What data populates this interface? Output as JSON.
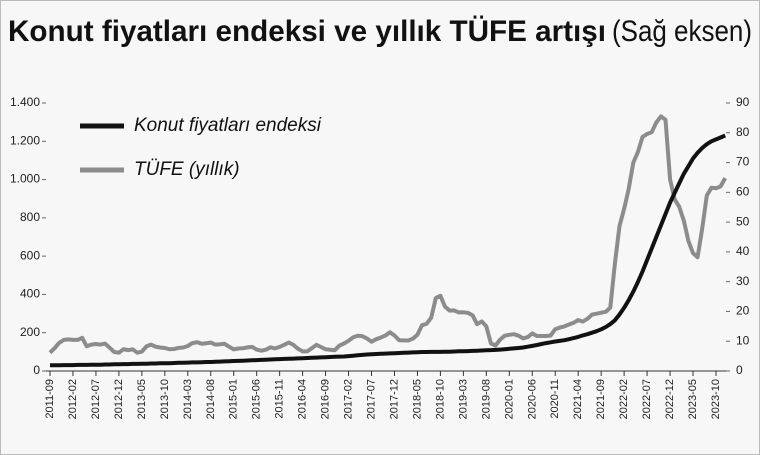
{
  "chart_data": {
    "type": "line",
    "title": "Konut fiyatları endeksi ve yıllık TÜFE artışı",
    "subtitle": "(Sağ eksen)",
    "categories": [
      "2011-09",
      null,
      null,
      null,
      null,
      "2012-02",
      null,
      null,
      null,
      null,
      "2012-07",
      null,
      null,
      null,
      null,
      "2012-12",
      null,
      null,
      null,
      null,
      "2013-05",
      null,
      null,
      null,
      null,
      "2013-10",
      null,
      null,
      null,
      null,
      "2014-03",
      null,
      null,
      null,
      null,
      "2014-08",
      null,
      null,
      null,
      null,
      "2015-01",
      null,
      null,
      null,
      null,
      "2015-06",
      null,
      null,
      null,
      null,
      "2015-11",
      null,
      null,
      null,
      null,
      "2016-04",
      null,
      null,
      null,
      null,
      "2016-09",
      null,
      null,
      null,
      null,
      "2017-02",
      null,
      null,
      null,
      null,
      "2017-07",
      null,
      null,
      null,
      null,
      "2017-12",
      null,
      null,
      null,
      null,
      "2018-05",
      null,
      null,
      null,
      null,
      "2018-10",
      null,
      null,
      null,
      null,
      "2019-03",
      null,
      null,
      null,
      null,
      "2019-08",
      null,
      null,
      null,
      null,
      "2020-01",
      null,
      null,
      null,
      null,
      "2020-06",
      null,
      null,
      null,
      null,
      "2020-11",
      null,
      null,
      null,
      null,
      "2021-04",
      null,
      null,
      null,
      null,
      "2021-09",
      null,
      null,
      null,
      null,
      "2022-02",
      null,
      null,
      null,
      null,
      "2022-07",
      null,
      null,
      null,
      null,
      "2022-12",
      null,
      null,
      null,
      null,
      "2023-05",
      null,
      null,
      null,
      null,
      "2023-10",
      null,
      null
    ],
    "series": [
      {
        "name": "Konut fiyatları endeksi",
        "color": "#111111",
        "values": [
          30,
          30,
          30,
          31,
          31,
          31,
          32,
          32,
          32,
          33,
          33,
          33,
          34,
          34,
          35,
          35,
          36,
          36,
          37,
          37,
          38,
          38,
          39,
          39,
          40,
          41,
          41,
          42,
          43,
          43,
          44,
          45,
          45,
          46,
          47,
          47,
          48,
          49,
          50,
          51,
          52,
          53,
          54,
          55,
          56,
          57,
          58,
          59,
          60,
          61,
          62,
          63,
          64,
          65,
          66,
          67,
          68,
          69,
          70,
          71,
          72,
          73,
          74,
          75,
          76,
          78,
          80,
          82,
          84,
          86,
          88,
          89,
          90,
          91,
          92,
          93,
          94,
          95,
          96,
          97,
          98,
          99,
          99,
          100,
          100,
          100,
          101,
          101,
          102,
          103,
          103,
          104,
          105,
          106,
          107,
          108,
          109,
          110,
          112,
          114,
          116,
          118,
          120,
          123,
          127,
          131,
          136,
          141,
          146,
          150,
          154,
          157,
          161,
          166,
          172,
          178,
          186,
          192,
          200,
          208,
          218,
          230,
          245,
          265,
          295,
          330,
          370,
          415,
          465,
          520,
          580,
          640,
          700,
          760,
          820,
          880,
          930,
          980,
          1030,
          1070,
          1110,
          1140,
          1165,
          1185,
          1200,
          1210,
          1220,
          1230
        ]
      },
      {
        "name": "TÜFE (yıllık)",
        "color": "#8c8c8c",
        "axis": "y2",
        "values": [
          6.15,
          7.66,
          9.48,
          10.45,
          10.61,
          10.43,
          10.43,
          11.14,
          8.28,
          8.87,
          9.07,
          8.88,
          9.19,
          7.8,
          6.37,
          6.16,
          7.31,
          7.03,
          7.29,
          6.13,
          6.51,
          8.3,
          8.88,
          8.17,
          7.88,
          7.71,
          7.32,
          7.4,
          7.75,
          7.89,
          8.39,
          9.38,
          9.66,
          9.16,
          9.32,
          9.54,
          8.86,
          8.96,
          9.15,
          8.17,
          7.24,
          7.55,
          7.61,
          7.91,
          8.09,
          7.2,
          6.81,
          7.14,
          7.95,
          7.58,
          8.1,
          8.81,
          9.58,
          8.78,
          7.46,
          6.57,
          6.58,
          7.64,
          8.79,
          8.05,
          7.28,
          7.16,
          7,
          8.53,
          9.22,
          10.13,
          11.29,
          11.87,
          11.72,
          10.9,
          9.79,
          10.68,
          11.2,
          11.9,
          12.98,
          11.92,
          10.35,
          10.26,
          10.23,
          10.85,
          12.15,
          15.39,
          15.85,
          17.9,
          24.52,
          25.24,
          21.62,
          20.3,
          20.35,
          19.67,
          19.71,
          19.5,
          18.71,
          15.72,
          16.65,
          15.01,
          9.26,
          8.55,
          10.56,
          11.84,
          12.15,
          12.37,
          11.86,
          10.94,
          11.39,
          12.62,
          11.76,
          11.77,
          11.75,
          11.89,
          14.03,
          14.6,
          14.97,
          15.61,
          16.19,
          17.14,
          16.59,
          17.53,
          18.95,
          19.25,
          19.58,
          19.89,
          21.31,
          36.08,
          48.69,
          54.44,
          61.14,
          69.97,
          73.5,
          78.62,
          79.6,
          80.21,
          83.45,
          85.51,
          84.39,
          64.27,
          57.68,
          55.18,
          50.51,
          43.68,
          39.59,
          38.21,
          47.83,
          58.94,
          61.53,
          61.36,
          61.98,
          64.77
        ]
      }
    ],
    "ylim": [
      0,
      1400
    ],
    "yticks": [
      0,
      200,
      400,
      600,
      800,
      {
        "value": 1000,
        "label": "1.000"
      },
      {
        "value": 1200,
        "label": "1.200"
      },
      {
        "value": 1400,
        "label": "1.400"
      }
    ],
    "y2lim": [
      0,
      90
    ],
    "y2ticks": [
      0,
      10,
      20,
      30,
      40,
      50,
      60,
      70,
      80,
      90
    ],
    "legend": "top-left"
  }
}
